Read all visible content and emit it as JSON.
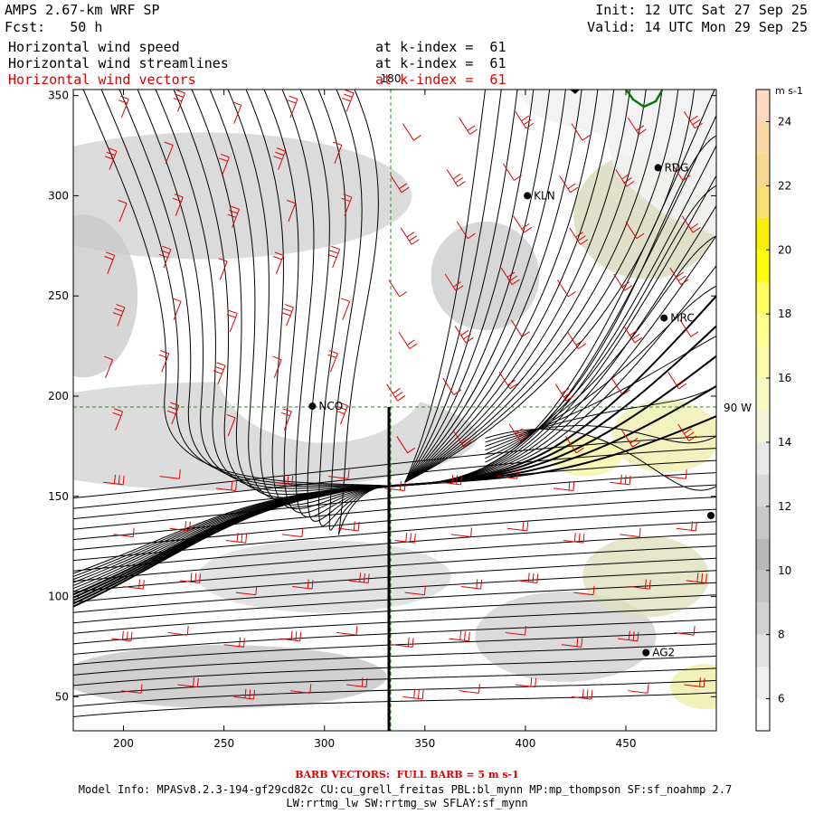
{
  "header": {
    "model_title": "AMPS 2.67-km WRF SP",
    "forecast": "Fcst:   50 h",
    "init": "Init: 12 UTC Sat 27 Sep 25",
    "valid": "Valid: 14 UTC Mon 29 Sep 25",
    "fields": [
      {
        "name": "Horizontal wind speed",
        "level": "at k-index =  61",
        "color": "#000000"
      },
      {
        "name": "Horizontal wind streamlines",
        "level": "at k-index =  61",
        "color": "#000000"
      },
      {
        "name": "Horizontal wind vectors",
        "level": "at k-index =  61",
        "color": "#e00000"
      }
    ]
  },
  "map": {
    "x_ticks": [
      "200",
      "250",
      "300",
      "350",
      "400",
      "450"
    ],
    "y_ticks": [
      "50",
      "100",
      "150",
      "200",
      "250",
      "300",
      "350"
    ],
    "meridian_label": "180",
    "parallel_label": "90 W",
    "stations": [
      {
        "code": "RDG",
        "x": 466,
        "y": 314
      },
      {
        "code": "KLN",
        "x": 401,
        "y": 300
      },
      {
        "code": "MRC",
        "x": 469,
        "y": 239
      },
      {
        "code": "NCO",
        "x": 294,
        "y": 195
      },
      {
        "code": "AG2",
        "x": 460,
        "y": 72
      }
    ],
    "grid_line_color": "#2e8b2e",
    "barb_color": "#e00000"
  },
  "colorbar": {
    "unit": "m s-1",
    "ticks": [
      "6",
      "8",
      "10",
      "12",
      "14",
      "16",
      "18",
      "20",
      "22",
      "24"
    ],
    "colors": [
      "#ffffff",
      "#f0f0f0",
      "#e2e2e2",
      "#d2d2d2",
      "#c4c4c4",
      "#b8b8b8",
      "#c8c8c8",
      "#d8d8d8",
      "#e8e8e8",
      "#f3f3d8",
      "#f8f8c0",
      "#fbfbaa",
      "#ffff90",
      "#ffff60",
      "#ffff00",
      "#f8f000",
      "#f8e070",
      "#f8d890",
      "#fbd8a8",
      "#ffd8c0"
    ]
  },
  "footer": {
    "barb_note": "BARB VECTORS:  FULL BARB = 5 m s-1",
    "model_info_1": "Model Info: MPASv8.2.3-194-gf29cd82c CU:cu_grell_freitas PBL:bl_mynn MP:mp_thompson SF:sf_noahmp 2.7",
    "model_info_2": "LW:rrtmg_lw SW:rrtmg_sw SFLAY:sf_mynn"
  }
}
